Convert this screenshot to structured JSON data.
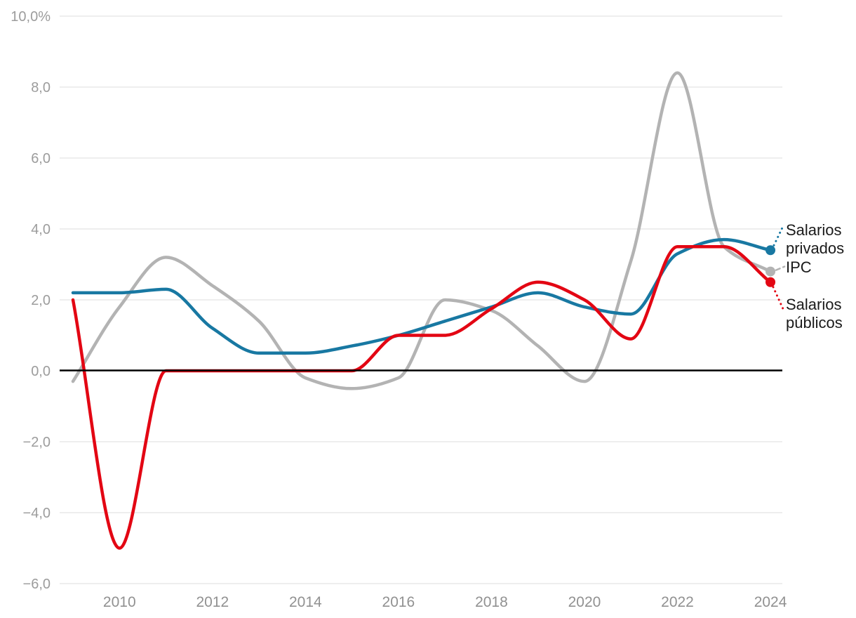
{
  "chart_data": {
    "type": "line",
    "title": "",
    "x": [
      2009,
      2010,
      2011,
      2012,
      2013,
      2014,
      2015,
      2016,
      2017,
      2018,
      2019,
      2020,
      2021,
      2022,
      2023,
      2024
    ],
    "xlim": [
      2009,
      2024
    ],
    "ylim": [
      -6,
      10
    ],
    "grid": "horizontal",
    "zero_baseline": true,
    "legend_position": "direct-end-labels-right",
    "y_ticks": [
      {
        "value": 10,
        "label": "10,0%"
      },
      {
        "value": 8,
        "label": "8,0"
      },
      {
        "value": 6,
        "label": "6,0"
      },
      {
        "value": 4,
        "label": "4,0"
      },
      {
        "value": 2,
        "label": "2,0"
      },
      {
        "value": 0,
        "label": "0,0"
      },
      {
        "value": -2,
        "label": "−2,0"
      },
      {
        "value": -4,
        "label": "−4,0"
      },
      {
        "value": -6,
        "label": "−6,0"
      }
    ],
    "x_ticks": [
      {
        "year": 2010,
        "label": "2010"
      },
      {
        "year": 2012,
        "label": "2012"
      },
      {
        "year": 2014,
        "label": "2014"
      },
      {
        "year": 2016,
        "label": "2016"
      },
      {
        "year": 2018,
        "label": "2018"
      },
      {
        "year": 2020,
        "label": "2020"
      },
      {
        "year": 2022,
        "label": "2022"
      },
      {
        "year": 2024,
        "label": "2024"
      }
    ],
    "series": [
      {
        "name": "Salarios privados",
        "end_label": "Salarios\nprivados",
        "color": "#1878a2",
        "connector": "dotted",
        "end_value": 3.4,
        "values": [
          2.2,
          2.2,
          2.3,
          1.2,
          0.5,
          0.5,
          0.7,
          1.0,
          1.4,
          1.8,
          2.2,
          1.8,
          1.6,
          3.3,
          3.7,
          3.4
        ]
      },
      {
        "name": "IPC",
        "end_label": "IPC",
        "color": "#b3b3b3",
        "connector": "dashed",
        "end_value": 2.8,
        "values": [
          -0.3,
          1.8,
          3.2,
          2.4,
          1.4,
          -0.2,
          -0.5,
          -0.2,
          2.0,
          1.7,
          0.7,
          -0.3,
          3.1,
          8.4,
          3.5,
          2.8
        ]
      },
      {
        "name": "Salarios públicos",
        "end_label": "Salarios\npúblicos",
        "color": "#e30613",
        "connector": "dotted",
        "end_value": 2.5,
        "values": [
          2.0,
          -5.0,
          0.0,
          0.0,
          0.0,
          0.0,
          0.0,
          1.0,
          1.0,
          1.75,
          2.5,
          2.0,
          0.9,
          3.5,
          3.5,
          2.5
        ]
      }
    ],
    "colors": {
      "grid_line": "#e8e8e8",
      "zero_line": "#000000",
      "axis_text": "#9c9c9c",
      "label_text": "#1a1a1a"
    }
  }
}
